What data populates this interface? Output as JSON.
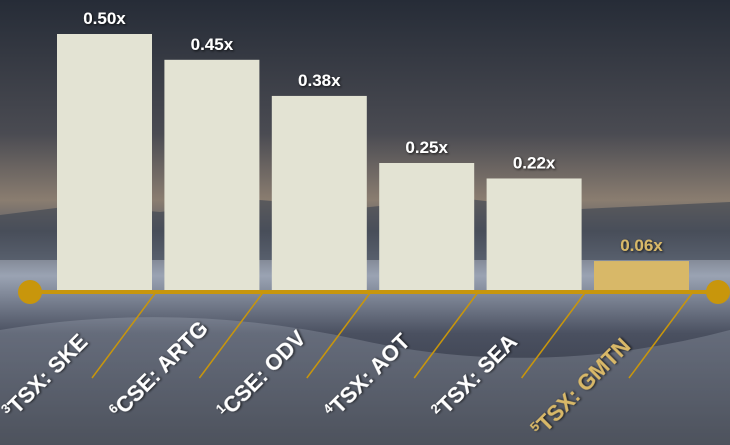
{
  "chart_data": {
    "type": "bar",
    "categories": [
      "TSX: SKE",
      "CSE: ARTG",
      "CSE: ODV",
      "TSX: AOT",
      "TSX: SEA",
      "TSX: GMTN"
    ],
    "category_notes": [
      "3",
      "6",
      "1",
      "4",
      "2",
      "5"
    ],
    "values": [
      0.5,
      0.45,
      0.38,
      0.25,
      0.22,
      0.06
    ],
    "value_labels": [
      "0.50x",
      "0.45x",
      "0.38x",
      "0.25x",
      "0.22x",
      "0.06x"
    ],
    "colors": [
      "#e3e3d3",
      "#e3e3d3",
      "#e3e3d3",
      "#e3e3d3",
      "#e3e3d3",
      "#d8b868"
    ],
    "axis_color": "#c8960c"
  }
}
